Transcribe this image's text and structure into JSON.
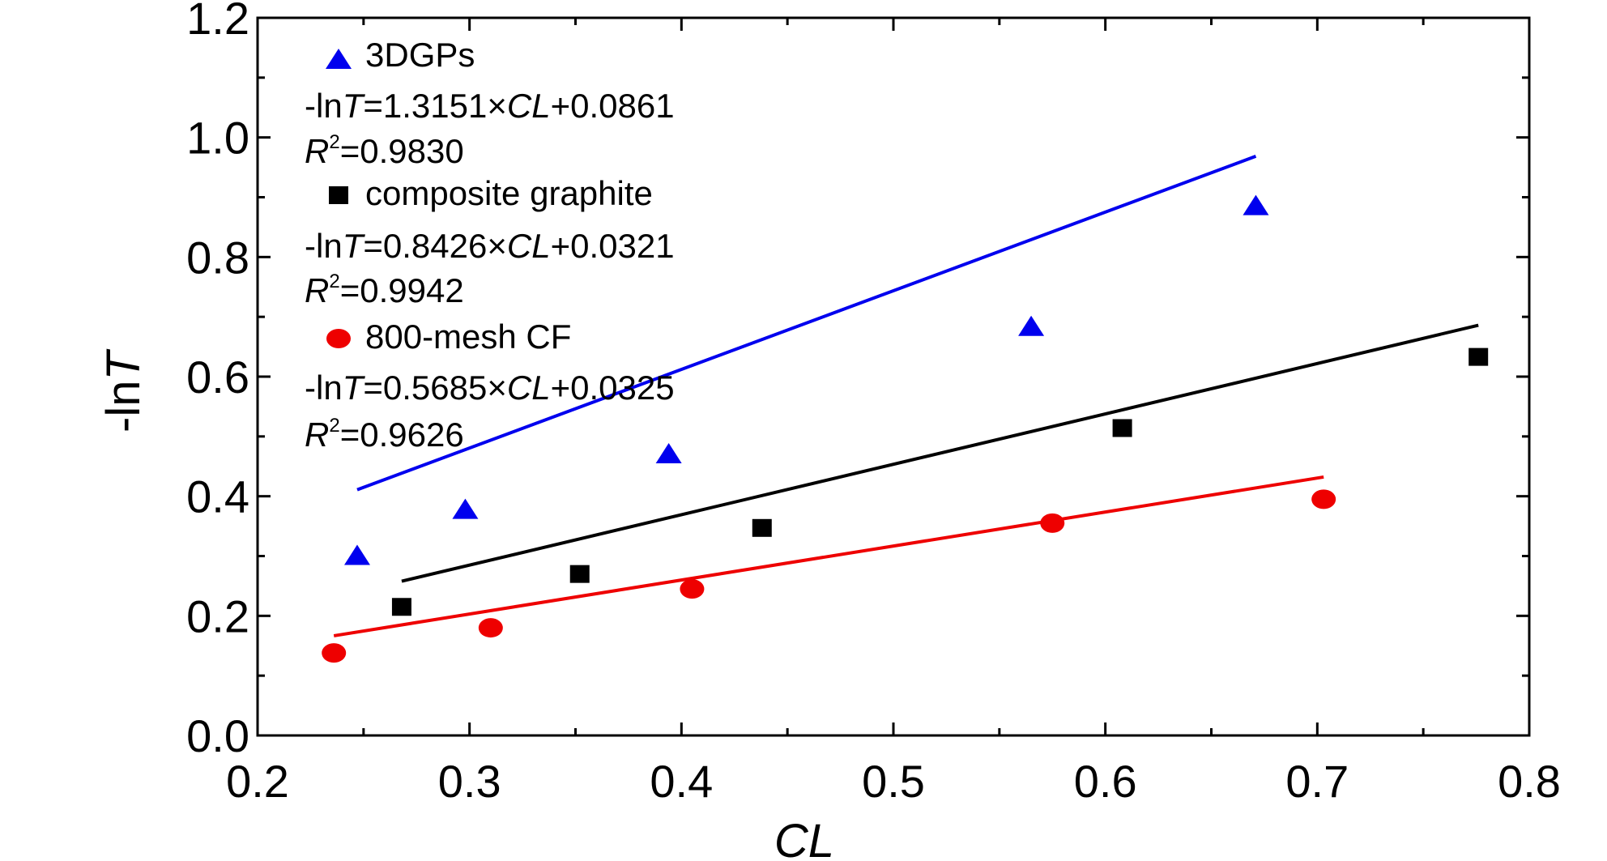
{
  "chart_data": {
    "type": "scatter",
    "xlabel": "CL",
    "ylabel": "-lnT",
    "xlim": [
      0.2,
      0.8
    ],
    "ylim": [
      0.0,
      1.2
    ],
    "x_ticks": [
      "0.2",
      "0.3",
      "0.4",
      "0.5",
      "0.6",
      "0.7",
      "0.8"
    ],
    "y_ticks": [
      "0.0",
      "0.2",
      "0.4",
      "0.6",
      "0.8",
      "1.0",
      "1.2"
    ],
    "grid": false,
    "legend_position": "top-left",
    "series": [
      {
        "name": "3DGPs",
        "marker": "triangle",
        "color": "#0000ee",
        "x": [
          0.247,
          0.298,
          0.394,
          0.565,
          0.671
        ],
        "y": [
          0.3,
          0.377,
          0.47,
          0.683,
          0.885
        ],
        "fit": {
          "slope": 1.3151,
          "intercept": 0.0861,
          "x_range": [
            0.247,
            0.671
          ]
        },
        "equation_prefix": "-ln",
        "equation_var": "T",
        "equation_mid": "=1.3151×",
        "equation_cl": "CL",
        "equation_suffix": "+0.0861",
        "r2_label": "R",
        "r2_sup": "2",
        "r2_value": "=0.9830"
      },
      {
        "name": "composite graphite",
        "marker": "square",
        "color": "#000000",
        "x": [
          0.268,
          0.352,
          0.438,
          0.608,
          0.776
        ],
        "y": [
          0.215,
          0.27,
          0.347,
          0.514,
          0.633
        ],
        "fit": {
          "slope": 0.8426,
          "intercept": 0.0321,
          "x_range": [
            0.268,
            0.776
          ]
        },
        "equation_prefix": "-ln",
        "equation_var": "T",
        "equation_mid": "=0.8426×",
        "equation_cl": "CL",
        "equation_suffix": "+0.0321",
        "r2_label": "R",
        "r2_sup": "2",
        "r2_value": "=0.9942"
      },
      {
        "name": "800-mesh CF",
        "marker": "circle",
        "color": "#ee0000",
        "x": [
          0.236,
          0.31,
          0.405,
          0.575,
          0.703
        ],
        "y": [
          0.138,
          0.18,
          0.245,
          0.355,
          0.395
        ],
        "fit": {
          "slope": 0.5685,
          "intercept": 0.0325,
          "x_range": [
            0.236,
            0.703
          ]
        },
        "equation_prefix": "-ln",
        "equation_var": "T",
        "equation_mid": "=0.5685×",
        "equation_cl": "CL",
        "equation_suffix": "+0.0325",
        "r2_label": "R",
        "r2_sup": "2",
        "r2_value": "=0.9626"
      }
    ]
  }
}
